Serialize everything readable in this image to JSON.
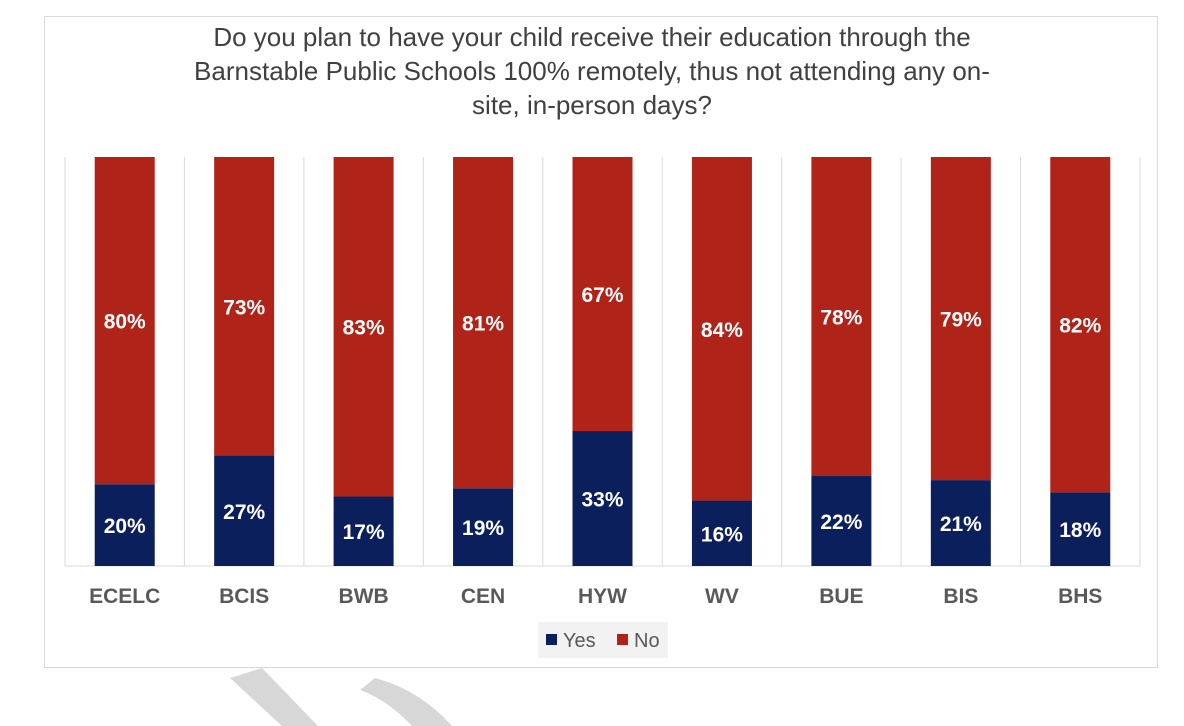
{
  "chart_data": {
    "type": "bar",
    "stacked": true,
    "title_lines": [
      "Do you plan to have your child receive their education through the",
      "Barnstable Public Schools 100% remotely, thus not attending any on-",
      "site, in-person days?"
    ],
    "categories": [
      "ECELC",
      "BCIS",
      "BWB",
      "CEN",
      "HYW",
      "WV",
      "BUE",
      "BIS",
      "BHS"
    ],
    "series": [
      {
        "name": "Yes",
        "color": "#0b1f5c",
        "values": [
          20,
          27,
          17,
          19,
          33,
          16,
          22,
          21,
          18
        ],
        "labels": [
          "20%",
          "27%",
          "17%",
          "19%",
          "33%",
          "16%",
          "22%",
          "21%",
          "18%"
        ]
      },
      {
        "name": "No",
        "color": "#b02318",
        "values": [
          80,
          73,
          83,
          81,
          67,
          84,
          78,
          79,
          82
        ],
        "labels": [
          "80%",
          "73%",
          "83%",
          "81%",
          "67%",
          "84%",
          "78%",
          "79%",
          "82%"
        ]
      }
    ],
    "ylim": [
      0,
      100
    ],
    "legend": {
      "position": "bottom",
      "entries": [
        "Yes",
        "No"
      ]
    },
    "gridlines": "vertical-separators"
  }
}
